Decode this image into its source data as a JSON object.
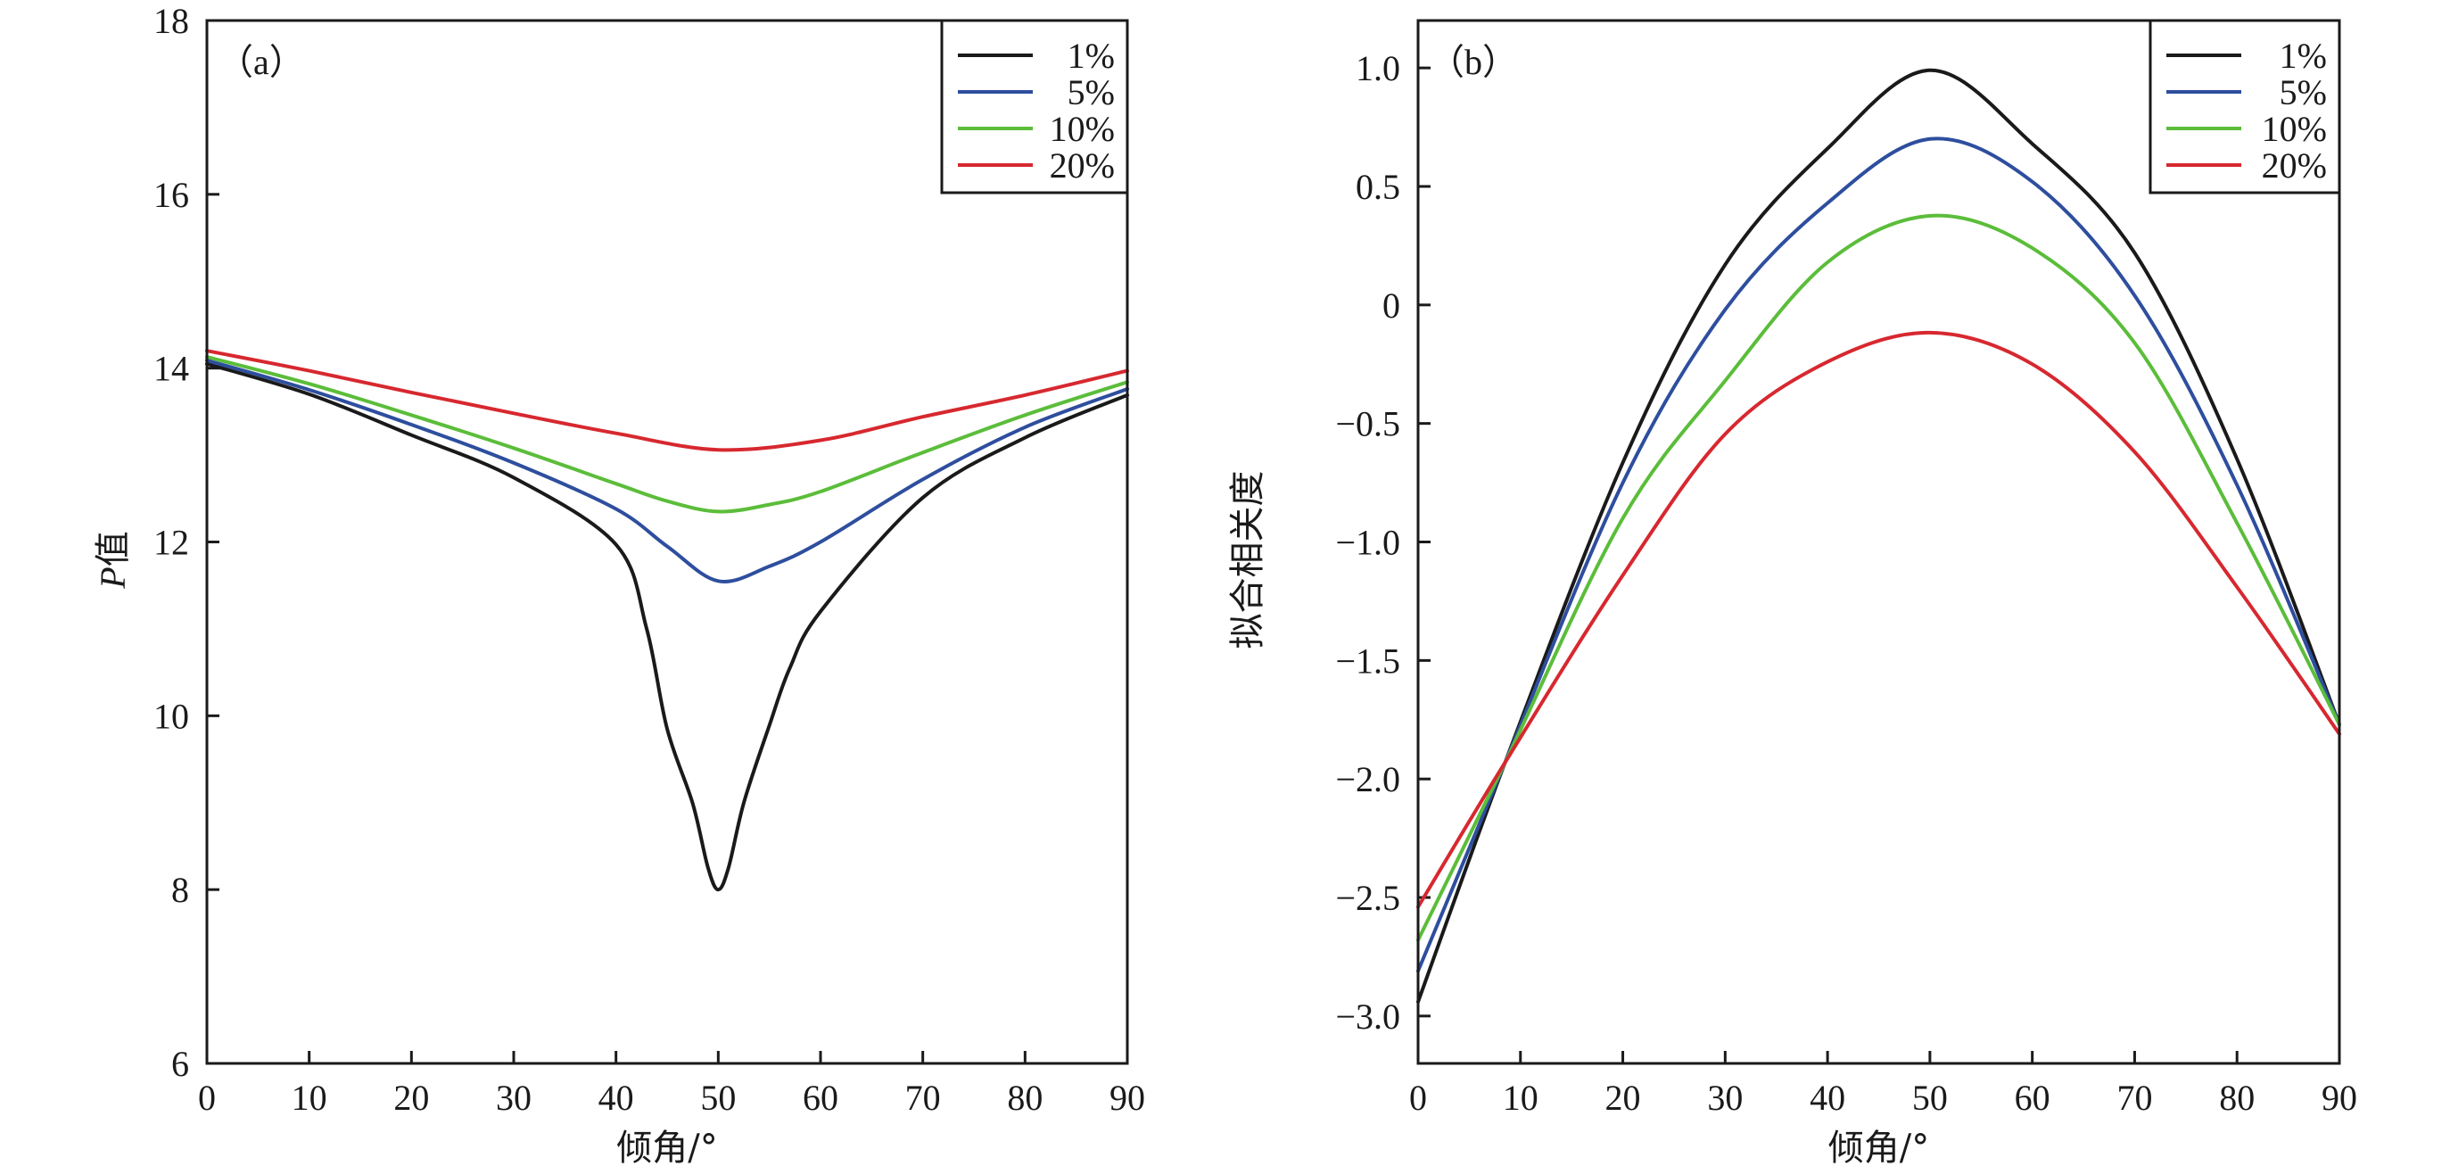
{
  "chart_data": [
    {
      "type": "line",
      "panel_label": "（a）",
      "xlabel": "倾角/°",
      "ylabel_italic": "P",
      "ylabel_rest": "值",
      "xlim": [
        0,
        90
      ],
      "ylim": [
        6,
        18
      ],
      "xticks": [
        0,
        10,
        20,
        30,
        40,
        50,
        60,
        70,
        80,
        90
      ],
      "xtick_labels": [
        "0",
        "10",
        "20",
        "30",
        "40",
        "50",
        "60",
        "70",
        "80",
        "90"
      ],
      "yticks": [
        6,
        8,
        10,
        12,
        14,
        16,
        18
      ],
      "ytick_labels": [
        "6",
        "8",
        "10",
        "12",
        "14",
        "16",
        "18"
      ],
      "grid": false,
      "legend_position": "top-right",
      "series": [
        {
          "name": "1%",
          "color": "#1a1a1a",
          "x": [
            0,
            10,
            20,
            30,
            40,
            43,
            45,
            47.5,
            49,
            50,
            51,
            52.5,
            55,
            57,
            60,
            70,
            80,
            90
          ],
          "y": [
            14.05,
            13.7,
            13.23,
            12.74,
            11.97,
            11.0,
            9.85,
            8.99,
            8.25,
            8.0,
            8.25,
            9.0,
            9.89,
            10.55,
            11.2,
            12.51,
            13.2,
            13.69
          ]
        },
        {
          "name": "5%",
          "color": "#2e4e9e",
          "x": [
            0,
            10,
            20,
            30,
            40,
            45,
            50,
            55,
            60,
            70,
            80,
            90
          ],
          "y": [
            14.09,
            13.75,
            13.35,
            12.91,
            12.38,
            11.95,
            11.55,
            11.72,
            12.0,
            12.72,
            13.32,
            13.76
          ]
        },
        {
          "name": "10%",
          "color": "#5bbd3a",
          "x": [
            0,
            10,
            20,
            30,
            40,
            45,
            50,
            55,
            60,
            70,
            80,
            90
          ],
          "y": [
            14.13,
            13.82,
            13.46,
            13.08,
            12.67,
            12.47,
            12.35,
            12.43,
            12.58,
            13.03,
            13.46,
            13.84
          ]
        },
        {
          "name": "20%",
          "color": "#d7282f",
          "x": [
            0,
            10,
            20,
            30,
            40,
            50,
            60,
            70,
            80,
            90
          ],
          "y": [
            14.2,
            13.97,
            13.72,
            13.48,
            13.25,
            13.06,
            13.17,
            13.44,
            13.69,
            13.97
          ]
        }
      ]
    },
    {
      "type": "line",
      "panel_label": "（b）",
      "xlabel": "倾角/°",
      "ylabel": "拟合相关度",
      "xlim": [
        0,
        90
      ],
      "ylim": [
        -3.2,
        1.2
      ],
      "xticks": [
        0,
        10,
        20,
        30,
        40,
        50,
        60,
        70,
        80,
        90
      ],
      "xtick_labels": [
        "0",
        "10",
        "20",
        "30",
        "40",
        "50",
        "60",
        "70",
        "80",
        "90"
      ],
      "yticks": [
        1.0,
        0.5,
        0,
        -0.5,
        -1.0,
        -1.5,
        -2.0,
        -2.5,
        -3.0
      ],
      "ytick_labels": [
        "1.0",
        "0.5",
        "0",
        "−0.5",
        "−1.0",
        "−1.5",
        "−2.0",
        "−2.5",
        "−3.0"
      ],
      "grid": false,
      "legend_position": "top-right",
      "series": [
        {
          "name": "1%",
          "color": "#1a1a1a",
          "x": [
            0,
            8.5,
            20,
            30,
            40,
            50,
            60,
            70,
            80,
            90
          ],
          "y": [
            -2.94,
            -1.93,
            -0.665,
            0.17,
            0.66,
            0.99,
            0.68,
            0.22,
            -0.65,
            -1.77
          ]
        },
        {
          "name": "5%",
          "color": "#2e4e9e",
          "x": [
            0,
            8.5,
            20,
            30,
            40,
            50,
            60,
            70,
            80,
            90
          ],
          "y": [
            -2.81,
            -1.93,
            -0.75,
            -0.02,
            0.43,
            0.7,
            0.52,
            0.04,
            -0.76,
            -1.77
          ]
        },
        {
          "name": "10%",
          "color": "#5bbd3a",
          "x": [
            0,
            8.5,
            20,
            30,
            40,
            50,
            60,
            70,
            80,
            90
          ],
          "y": [
            -2.68,
            -1.93,
            -0.9,
            -0.32,
            0.18,
            0.376,
            0.24,
            -0.16,
            -0.92,
            -1.77
          ]
        },
        {
          "name": "20%",
          "color": "#d7282f",
          "x": [
            0,
            8.5,
            20,
            30,
            40,
            50,
            60,
            70,
            80,
            90
          ],
          "y": [
            -2.54,
            -1.93,
            -1.14,
            -0.545,
            -0.24,
            -0.117,
            -0.25,
            -0.62,
            -1.19,
            -1.81
          ]
        }
      ]
    }
  ]
}
